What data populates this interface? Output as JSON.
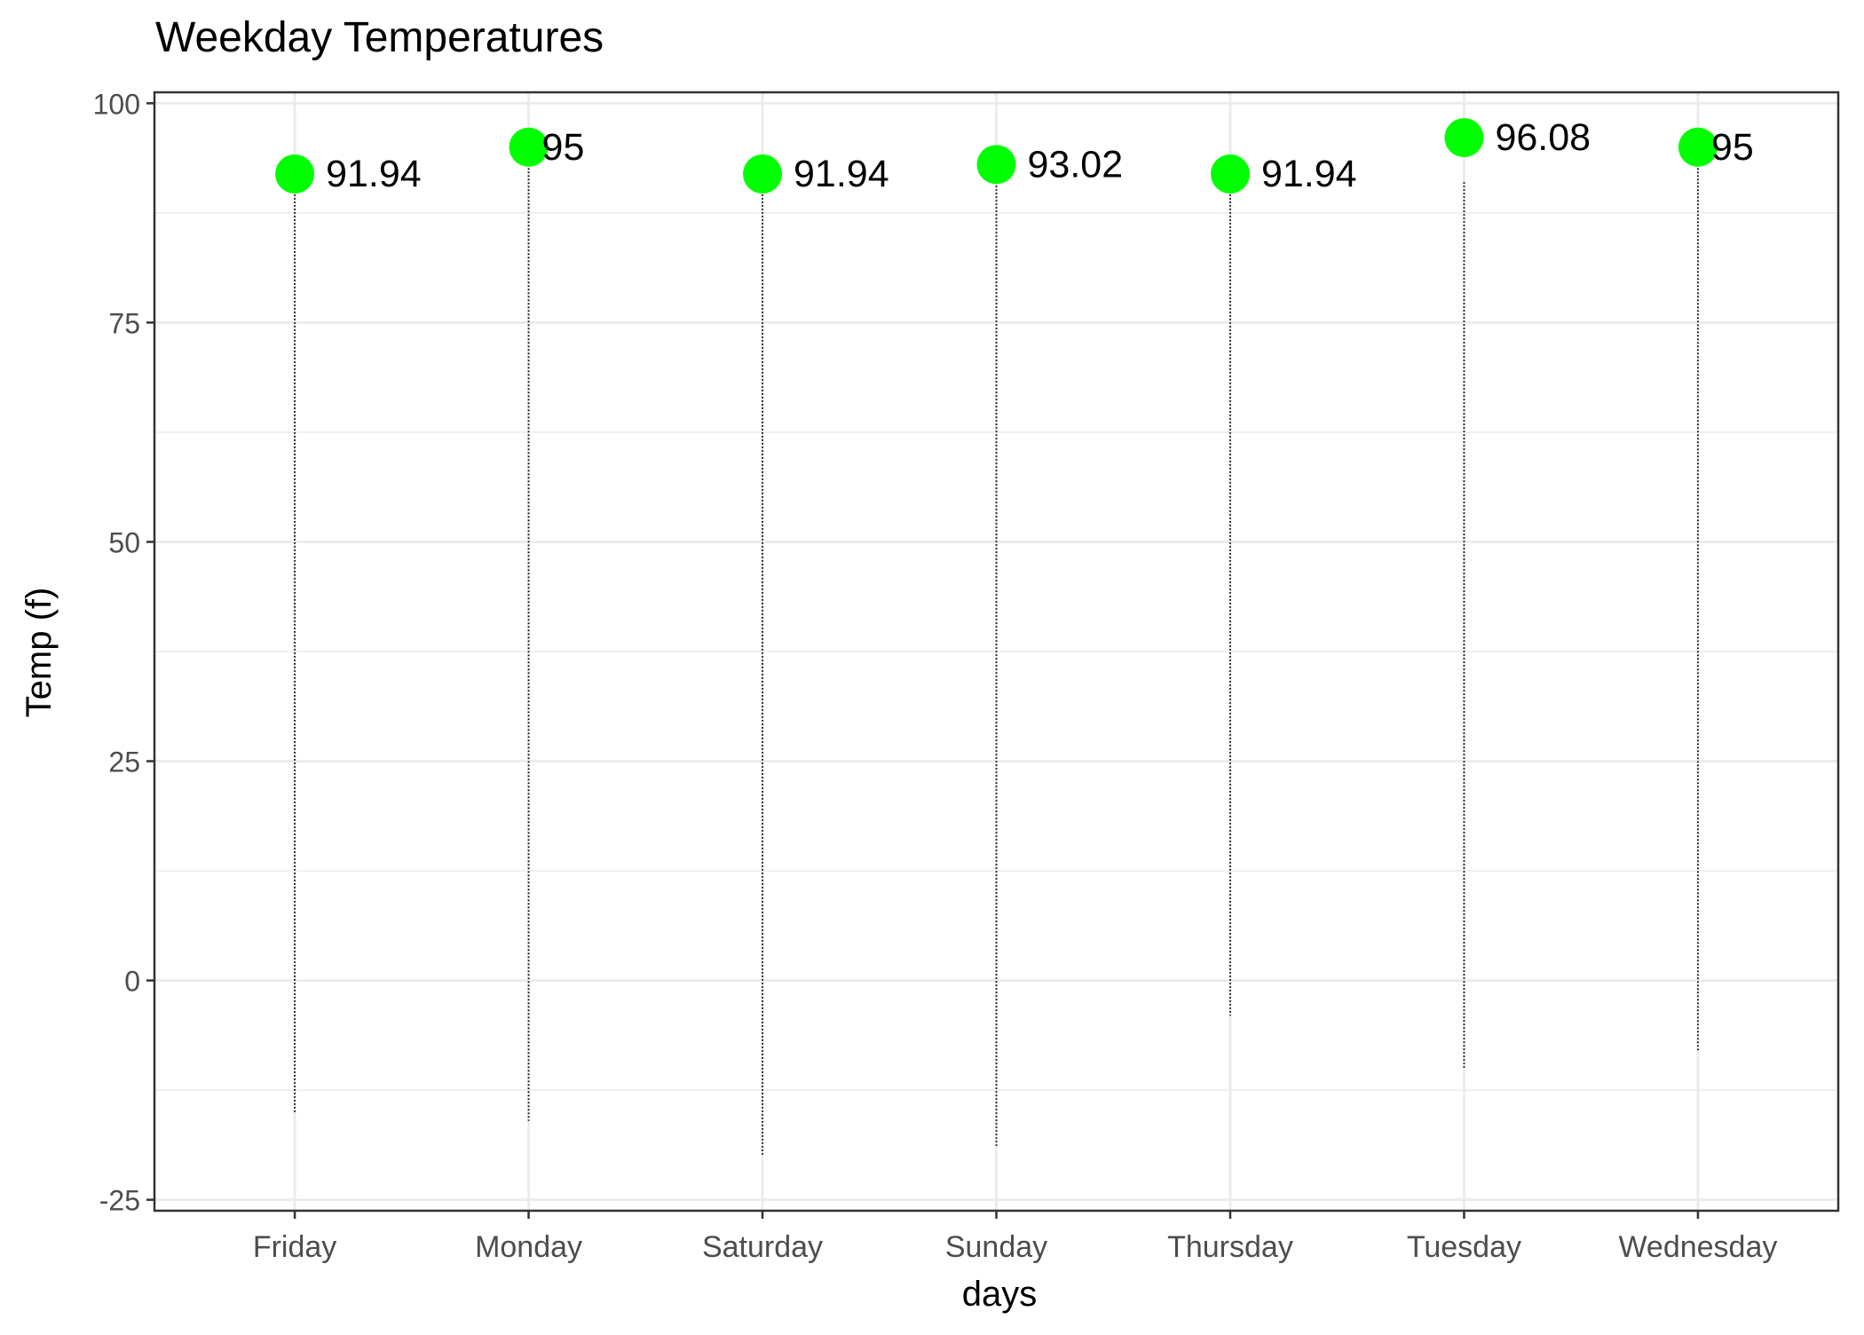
{
  "chart_data": {
    "type": "scatter",
    "title": "Weekday Temperatures",
    "xlabel": "days",
    "ylabel": "Temp (f)",
    "categories": [
      "Friday",
      "Monday",
      "Saturday",
      "Sunday",
      "Thursday",
      "Tuesday",
      "Wednesday"
    ],
    "max_values": [
      91.94,
      95,
      91.94,
      93.02,
      91.94,
      96.08,
      95
    ],
    "max_labels": [
      "91.94",
      "95",
      "91.94",
      "93.02",
      "91.94",
      "96.08",
      "95"
    ],
    "observation_ranges": [
      {
        "min": -15,
        "max": 90
      },
      {
        "min": -16,
        "max": 93
      },
      {
        "min": -20,
        "max": 90
      },
      {
        "min": -19,
        "max": 91
      },
      {
        "min": -4,
        "max": 90
      },
      {
        "min": -10,
        "max": 91
      },
      {
        "min": -8,
        "max": 93
      }
    ],
    "ylim": [
      -26.25,
      101.25
    ],
    "y_ticks": [
      -25,
      0,
      25,
      50,
      75,
      100
    ],
    "y_tick_labels": [
      "-25",
      "0",
      "25",
      "50",
      "75",
      "100"
    ],
    "grid": true,
    "theme": "bw",
    "colors": {
      "point": "#00ff00",
      "observations": "#000000",
      "grid": "#ebebeb",
      "panel_border": "#333333",
      "tick_label": "#4d4d4d",
      "text": "#000000"
    }
  }
}
